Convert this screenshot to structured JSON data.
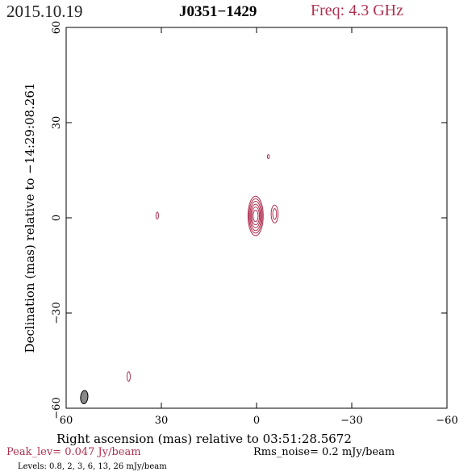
{
  "header": {
    "date": "2015.10.19",
    "source": "J0351−1429",
    "frequency": "Freq: 4.3 GHz"
  },
  "footer": {
    "peak": "Peak_lev=  0.047 Jy/beam",
    "rms": "Rms_noise=  0.2 mJy/beam",
    "levels": "Levels: 0.8,   2,   3,   6,  13,  26 mJy/beam"
  },
  "chart_data": {
    "type": "contour",
    "xlabel": "Right ascension (mas) relative to 03:51:28.5672",
    "ylabel": "Declination (mas) relative to −14:29:08.261",
    "xlim": [
      60,
      -60
    ],
    "ylim": [
      -60,
      60
    ],
    "x_ticks": [
      60,
      30,
      0,
      -30,
      -60
    ],
    "x_tick_labels": [
      "60",
      "30",
      "0",
      "−30",
      "−60"
    ],
    "y_ticks": [
      -60,
      -30,
      0,
      30,
      60
    ],
    "y_tick_labels": [
      "−60",
      "−30",
      "0",
      "30",
      "60"
    ],
    "contour_levels_mjy": [
      0.8,
      2,
      3,
      6,
      13,
      26
    ],
    "contour_color": "#b03050",
    "components": [
      {
        "x": 0.3,
        "y": 0.6,
        "rx": [
          2.4,
          2.1,
          1.8,
          1.5,
          1.2,
          0.8
        ],
        "ry": [
          6.2,
          5.4,
          4.6,
          3.7,
          2.8,
          1.8
        ]
      },
      {
        "x": -5.7,
        "y": 1.2,
        "rx": [
          1.1,
          0.6
        ],
        "ry": [
          2.8,
          1.7
        ]
      },
      {
        "x": -3.7,
        "y": 19.3,
        "rx": [
          0.3
        ],
        "ry": [
          0.6
        ]
      },
      {
        "x": 31.3,
        "y": 0.7,
        "rx": [
          0.4
        ],
        "ry": [
          1.1
        ]
      },
      {
        "x": 40.3,
        "y": -50.0,
        "rx": [
          0.5
        ],
        "ry": [
          1.5
        ]
      }
    ],
    "beam": {
      "x": 54.3,
      "y": -56.5,
      "major": 4.2,
      "minor": 2.3,
      "pa_deg": 5,
      "fill": "#888888"
    }
  }
}
